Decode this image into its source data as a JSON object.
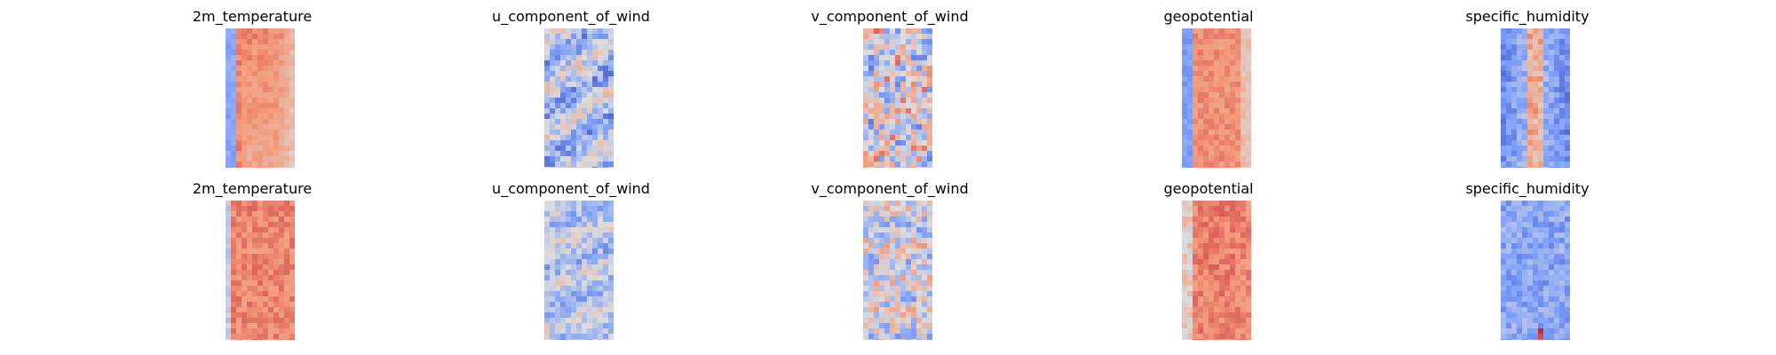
{
  "figure": {
    "rows": [
      {
        "panels": [
          {
            "title": "2m_temperature",
            "base": "#c2503f",
            "variant": "temp_top"
          },
          {
            "title": "u_component_of_wind",
            "base": "#b9cdf2",
            "variant": "wind_u_top"
          },
          {
            "title": "v_component_of_wind",
            "base": "#e7c5b8",
            "variant": "wind_v_top"
          },
          {
            "title": "geopotential",
            "base": "#d55a45",
            "variant": "geo_top"
          },
          {
            "title": "specific_humidity",
            "base": "#6f8fe0",
            "variant": "hum_top"
          }
        ]
      },
      {
        "panels": [
          {
            "title": "2m_temperature",
            "base": "#d36b55",
            "variant": "temp_bottom"
          },
          {
            "title": "u_component_of_wind",
            "base": "#bfd2f2",
            "variant": "wind_u_bottom"
          },
          {
            "title": "v_component_of_wind",
            "base": "#d9d9e6",
            "variant": "wind_v_bottom"
          },
          {
            "title": "geopotential",
            "base": "#c6463a",
            "variant": "geo_bottom"
          },
          {
            "title": "specific_humidity",
            "base": "#7d9ae6",
            "variant": "hum_bottom"
          }
        ]
      }
    ],
    "colormap": "coolwarm"
  }
}
